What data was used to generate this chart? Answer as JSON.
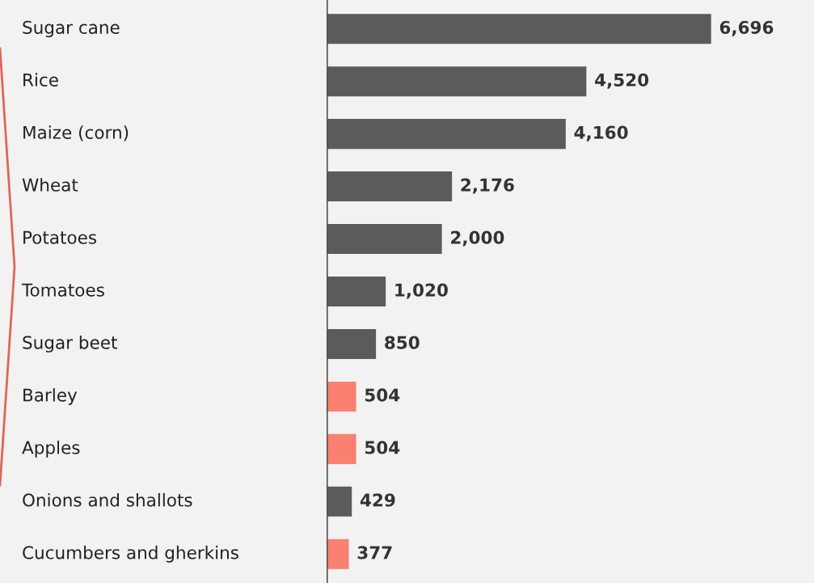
{
  "chart_data": {
    "type": "bar",
    "orientation": "horizontal",
    "legend": false,
    "categories": [
      "Sugar cane",
      "Rice",
      "Maize (corn)",
      "Wheat",
      "Potatoes",
      "Tomatoes",
      "Sugar beet",
      "Barley",
      "Apples",
      "Onions and shallots",
      "Cucumbers and gherkins"
    ],
    "values": [
      6696,
      4520,
      4160,
      2176,
      2000,
      1020,
      850,
      504,
      504,
      429,
      377
    ],
    "value_labels": [
      "6,696",
      "4,520",
      "4,160",
      "2,176",
      "2,000",
      "1,020",
      "850",
      "504",
      "504",
      "429",
      "377"
    ],
    "colors": [
      "#5b5b5b",
      "#5b5b5b",
      "#5b5b5b",
      "#5b5b5b",
      "#5b5b5b",
      "#5b5b5b",
      "#5b5b5b",
      "#fa8072",
      "#fa8072",
      "#5b5b5b",
      "#fa8072"
    ]
  }
}
